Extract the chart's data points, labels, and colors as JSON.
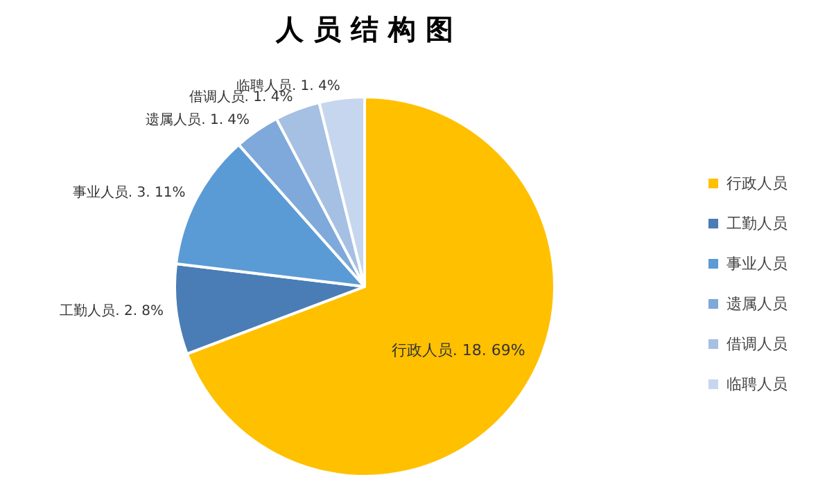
{
  "chart_data": {
    "type": "pie",
    "title": "人 员 结 构 图",
    "categories": [
      "行政人员",
      "工勤人员",
      "事业人员",
      "遗属人员",
      "借调人员",
      "临聘人员"
    ],
    "values": [
      18,
      2,
      3,
      1,
      1,
      1
    ],
    "colors": [
      "#ffc000",
      "#4a7db5",
      "#5b9bd5",
      "#7ea9da",
      "#a5c0e2",
      "#c6d6ee"
    ],
    "value_labels": [
      "行政人员. 18. 69%",
      "工勤人员. 2. 8%",
      "事业人员. 3. 11%",
      "遗属人员. 1. 4%",
      "借调人员. 1. 4%",
      "临聘人员. 1. 4%"
    ],
    "legend": "right"
  }
}
